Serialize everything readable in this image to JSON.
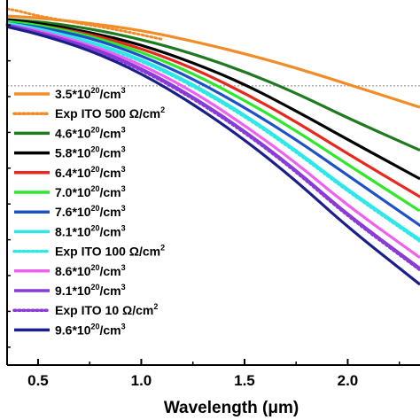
{
  "chart_data": {
    "type": "line",
    "xlabel": "Wavelength (μm)",
    "ylabel": "",
    "xlim": [
      0.35,
      2.35
    ],
    "ylim": [
      0,
      1
    ],
    "xticks": [
      "0.5",
      "1.0",
      "1.5",
      "2.0"
    ],
    "xtick_values": [
      0.5,
      1.0,
      1.5,
      2.0
    ],
    "reference_line_y": 0.78,
    "legend_position": "left",
    "series": [
      {
        "name": "3.5*10^20/cm^3",
        "label_parts": [
          "3.5*10",
          "20",
          "/cm",
          "3"
        ],
        "color": "#f28c28",
        "dash": "solid",
        "x": [
          0.35,
          0.5,
          0.75,
          1.0,
          1.25,
          1.5,
          1.75,
          2.0,
          2.35
        ],
        "y": [
          0.975,
          0.97,
          0.955,
          0.935,
          0.905,
          0.87,
          0.83,
          0.785,
          0.72
        ]
      },
      {
        "name": "Exp ITO 500 Ω/cm^2",
        "label_parts": [
          "Exp ITO 500 Ω/cm",
          "2",
          "",
          ""
        ],
        "color": "#f28c28",
        "dash": "dotted",
        "x": [
          0.35,
          0.4,
          0.5,
          0.7,
          0.9,
          1.1
        ],
        "y": [
          0.995,
          0.99,
          0.975,
          0.955,
          0.935,
          0.91
        ]
      },
      {
        "name": "4.6*10^20/cm^3",
        "label_parts": [
          "4.6*10",
          "20",
          "/cm",
          "3"
        ],
        "color": "#1f7a1f",
        "dash": "solid",
        "x": [
          0.35,
          0.5,
          0.75,
          1.0,
          1.25,
          1.5,
          1.75,
          2.0,
          2.35
        ],
        "y": [
          0.965,
          0.96,
          0.94,
          0.91,
          0.87,
          0.82,
          0.76,
          0.69,
          0.6
        ]
      },
      {
        "name": "5.8*10^20/cm^3",
        "label_parts": [
          "5.8*10",
          "20",
          "/cm",
          "3"
        ],
        "color": "#000000",
        "dash": "solid",
        "x": [
          0.35,
          0.5,
          0.75,
          1.0,
          1.25,
          1.5,
          1.75,
          2.0,
          2.35
        ],
        "y": [
          0.965,
          0.955,
          0.93,
          0.895,
          0.845,
          0.785,
          0.71,
          0.63,
          0.52
        ]
      },
      {
        "name": "6.4*10^20/cm^3",
        "label_parts": [
          "6.4*10",
          "20",
          "/cm",
          "3"
        ],
        "color": "#e8281e",
        "dash": "solid",
        "x": [
          0.35,
          0.5,
          0.75,
          1.0,
          1.25,
          1.5,
          1.75,
          2.0,
          2.35
        ],
        "y": [
          0.96,
          0.95,
          0.925,
          0.885,
          0.83,
          0.76,
          0.68,
          0.59,
          0.47
        ]
      },
      {
        "name": "7.0*10^20/cm^3",
        "label_parts": [
          "7.0*10",
          "20",
          "/cm",
          "3"
        ],
        "color": "#2ee82e",
        "dash": "solid",
        "x": [
          0.35,
          0.5,
          0.75,
          1.0,
          1.25,
          1.5,
          1.75,
          2.0,
          2.35
        ],
        "y": [
          0.96,
          0.95,
          0.92,
          0.875,
          0.815,
          0.74,
          0.655,
          0.56,
          0.43
        ]
      },
      {
        "name": "7.6*10^20/cm^3",
        "label_parts": [
          "7.6*10",
          "20",
          "/cm",
          "3"
        ],
        "color": "#1e50c8",
        "dash": "solid",
        "x": [
          0.35,
          0.5,
          0.75,
          1.0,
          1.25,
          1.5,
          1.75,
          2.0,
          2.35
        ],
        "y": [
          0.955,
          0.945,
          0.915,
          0.865,
          0.8,
          0.72,
          0.63,
          0.53,
          0.39
        ]
      },
      {
        "name": "8.1*10^20/cm^3",
        "label_parts": [
          "8.1*10",
          "20",
          "/cm",
          "3"
        ],
        "color": "#2ee8e8",
        "dash": "solid",
        "x": [
          0.35,
          0.5,
          0.75,
          1.0,
          1.25,
          1.5,
          1.75,
          2.0,
          2.35
        ],
        "y": [
          0.955,
          0.94,
          0.905,
          0.855,
          0.785,
          0.7,
          0.6,
          0.49,
          0.35
        ]
      },
      {
        "name": "Exp ITO 100 Ω/cm^2",
        "label_parts": [
          "Exp ITO 100 Ω/cm",
          "2",
          "",
          ""
        ],
        "color": "#2ee8e8",
        "dash": "dotted",
        "x": [
          0.35,
          0.5,
          0.75,
          1.0,
          1.25,
          1.5,
          1.75,
          2.0,
          2.35
        ],
        "y": [
          0.955,
          0.94,
          0.9,
          0.85,
          0.78,
          0.695,
          0.595,
          0.485,
          0.345
        ]
      },
      {
        "name": "8.6*10^20/cm^3",
        "label_parts": [
          "8.6*10",
          "20",
          "/cm",
          "3"
        ],
        "color": "#f060f0",
        "dash": "solid",
        "x": [
          0.35,
          0.5,
          0.75,
          1.0,
          1.25,
          1.5,
          1.75,
          2.0,
          2.35
        ],
        "y": [
          0.95,
          0.935,
          0.895,
          0.84,
          0.765,
          0.67,
          0.565,
          0.445,
          0.3
        ]
      },
      {
        "name": "9.1*10^20/cm^3",
        "label_parts": [
          "9.1*10",
          "20",
          "/cm",
          "3"
        ],
        "color": "#8a3ad6",
        "dash": "solid",
        "x": [
          0.35,
          0.5,
          0.75,
          1.0,
          1.25,
          1.5,
          1.75,
          2.0,
          2.35
        ],
        "y": [
          0.95,
          0.93,
          0.89,
          0.83,
          0.75,
          0.655,
          0.545,
          0.42,
          0.27
        ]
      },
      {
        "name": "Exp ITO 10 Ω/cm^2",
        "label_parts": [
          "Exp ITO 10 Ω/cm",
          "2",
          "",
          ""
        ],
        "color": "#8a3ad6",
        "dash": "dotted",
        "x": [
          0.35,
          0.5,
          0.75,
          1.0,
          1.25,
          1.5,
          1.75,
          2.0,
          2.35
        ],
        "y": [
          0.95,
          0.93,
          0.885,
          0.825,
          0.745,
          0.65,
          0.54,
          0.415,
          0.265
        ]
      },
      {
        "name": "9.6*10^20/cm^3",
        "label_parts": [
          "9.6*10",
          "20",
          "/cm",
          "3"
        ],
        "color": "#1a1f8c",
        "dash": "solid",
        "x": [
          0.35,
          0.5,
          0.75,
          1.0,
          1.25,
          1.5,
          1.75,
          2.0,
          2.35
        ],
        "y": [
          0.945,
          0.925,
          0.88,
          0.815,
          0.73,
          0.63,
          0.515,
          0.385,
          0.225
        ]
      }
    ]
  }
}
